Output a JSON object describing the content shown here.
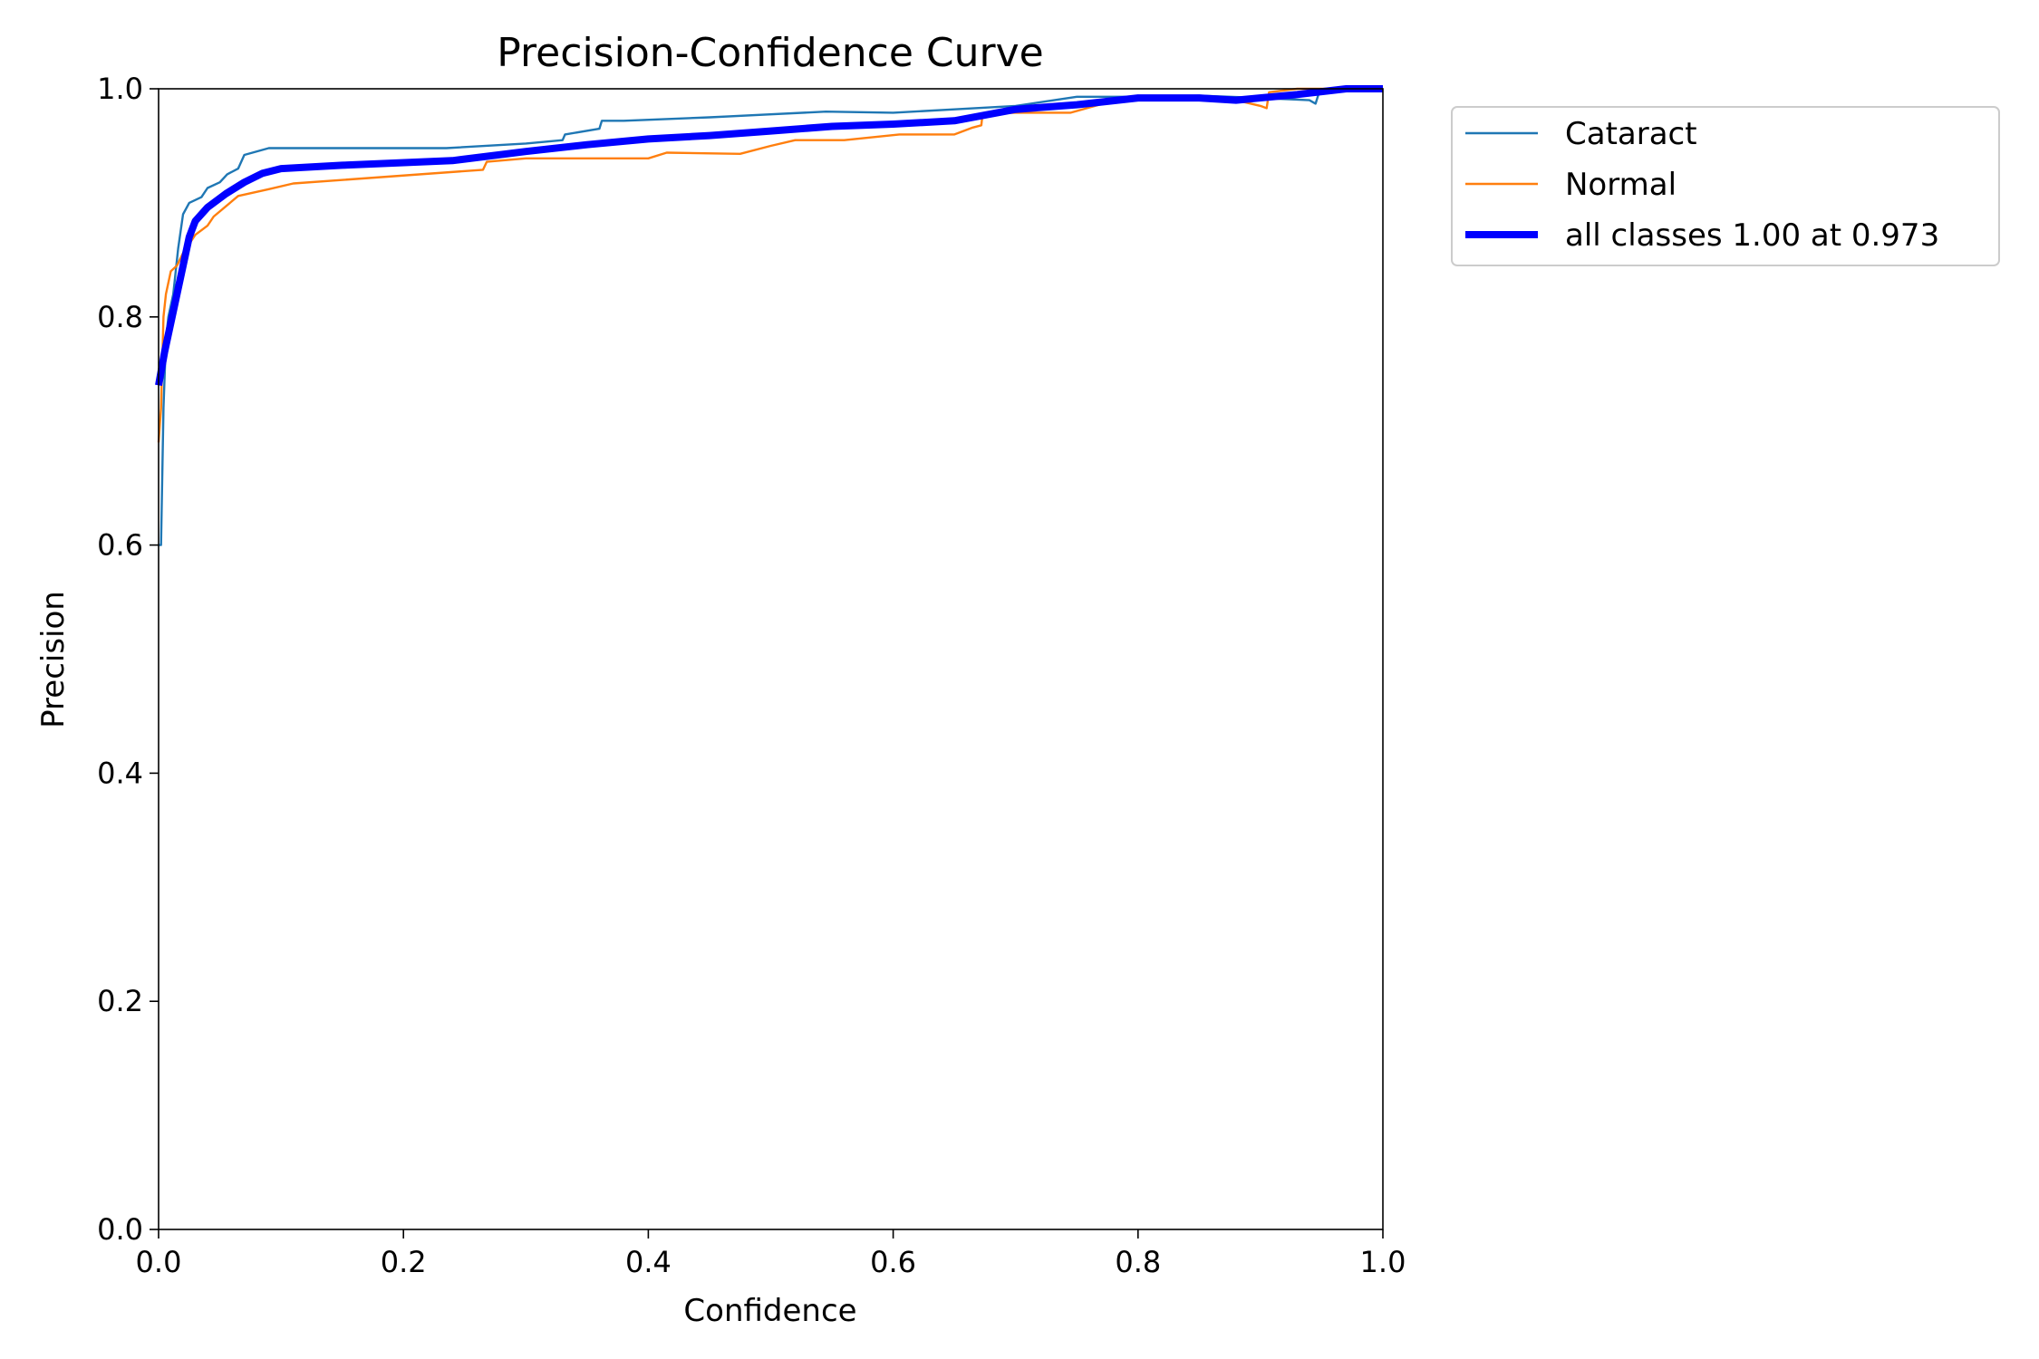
{
  "chart_data": {
    "type": "line",
    "title": "Precision-Confidence Curve",
    "xlabel": "Confidence",
    "ylabel": "Precision",
    "xlim": [
      0,
      1
    ],
    "ylim": [
      0,
      1
    ],
    "x_ticks": [
      "0.0",
      "0.2",
      "0.4",
      "0.6",
      "0.8",
      "1.0"
    ],
    "y_ticks": [
      "0.0",
      "0.2",
      "0.4",
      "0.6",
      "0.8",
      "1.0"
    ],
    "grid": false,
    "legend_position": "outside-top-right",
    "series": [
      {
        "name": "Cataract",
        "color": "#1f77b4",
        "line_width": "thin",
        "points": [
          [
            0.0,
            0.6
          ],
          [
            0.002,
            0.6
          ],
          [
            0.004,
            0.72
          ],
          [
            0.006,
            0.78
          ],
          [
            0.008,
            0.8
          ],
          [
            0.012,
            0.82
          ],
          [
            0.016,
            0.86
          ],
          [
            0.02,
            0.89
          ],
          [
            0.025,
            0.9
          ],
          [
            0.035,
            0.905
          ],
          [
            0.04,
            0.913
          ],
          [
            0.05,
            0.918
          ],
          [
            0.056,
            0.925
          ],
          [
            0.065,
            0.93
          ],
          [
            0.07,
            0.942
          ],
          [
            0.09,
            0.948
          ],
          [
            0.15,
            0.948
          ],
          [
            0.235,
            0.948
          ],
          [
            0.3,
            0.952
          ],
          [
            0.33,
            0.955
          ],
          [
            0.332,
            0.96
          ],
          [
            0.36,
            0.965
          ],
          [
            0.362,
            0.972
          ],
          [
            0.38,
            0.972
          ],
          [
            0.45,
            0.975
          ],
          [
            0.545,
            0.98
          ],
          [
            0.6,
            0.979
          ],
          [
            0.65,
            0.982
          ],
          [
            0.7,
            0.985
          ],
          [
            0.75,
            0.993
          ],
          [
            0.8,
            0.993
          ],
          [
            0.85,
            0.994
          ],
          [
            0.9,
            0.992
          ],
          [
            0.94,
            0.99
          ],
          [
            0.945,
            0.987
          ],
          [
            0.948,
            0.997
          ],
          [
            0.97,
            1.0
          ],
          [
            1.0,
            1.0
          ]
        ]
      },
      {
        "name": "Normal",
        "color": "#ff7f0e",
        "line_width": "thin",
        "points": [
          [
            0.0,
            0.69
          ],
          [
            0.002,
            0.72
          ],
          [
            0.004,
            0.8
          ],
          [
            0.006,
            0.82
          ],
          [
            0.01,
            0.84
          ],
          [
            0.015,
            0.845
          ],
          [
            0.02,
            0.856
          ],
          [
            0.03,
            0.872
          ],
          [
            0.04,
            0.88
          ],
          [
            0.045,
            0.888
          ],
          [
            0.055,
            0.897
          ],
          [
            0.065,
            0.906
          ],
          [
            0.09,
            0.912
          ],
          [
            0.11,
            0.917
          ],
          [
            0.265,
            0.929
          ],
          [
            0.268,
            0.936
          ],
          [
            0.3,
            0.939
          ],
          [
            0.35,
            0.939
          ],
          [
            0.4,
            0.939
          ],
          [
            0.415,
            0.944
          ],
          [
            0.475,
            0.943
          ],
          [
            0.5,
            0.95
          ],
          [
            0.52,
            0.955
          ],
          [
            0.56,
            0.955
          ],
          [
            0.605,
            0.96
          ],
          [
            0.65,
            0.96
          ],
          [
            0.665,
            0.966
          ],
          [
            0.672,
            0.968
          ],
          [
            0.673,
            0.978
          ],
          [
            0.7,
            0.979
          ],
          [
            0.745,
            0.979
          ],
          [
            0.775,
            0.988
          ],
          [
            0.8,
            0.992
          ],
          [
            0.85,
            0.993
          ],
          [
            0.88,
            0.99
          ],
          [
            0.9,
            0.985
          ],
          [
            0.905,
            0.983
          ],
          [
            0.907,
            0.997
          ],
          [
            0.93,
            1.0
          ],
          [
            1.0,
            1.0
          ]
        ]
      },
      {
        "name": "all classes 1.00 at 0.973",
        "color": "#0000ff",
        "line_width": "thick",
        "points": [
          [
            0.0,
            0.74
          ],
          [
            0.005,
            0.77
          ],
          [
            0.015,
            0.82
          ],
          [
            0.025,
            0.87
          ],
          [
            0.03,
            0.884
          ],
          [
            0.04,
            0.896
          ],
          [
            0.055,
            0.908
          ],
          [
            0.07,
            0.918
          ],
          [
            0.085,
            0.926
          ],
          [
            0.1,
            0.93
          ],
          [
            0.15,
            0.933
          ],
          [
            0.24,
            0.937
          ],
          [
            0.3,
            0.945
          ],
          [
            0.35,
            0.951
          ],
          [
            0.4,
            0.956
          ],
          [
            0.45,
            0.959
          ],
          [
            0.5,
            0.963
          ],
          [
            0.55,
            0.967
          ],
          [
            0.6,
            0.969
          ],
          [
            0.65,
            0.972
          ],
          [
            0.7,
            0.982
          ],
          [
            0.75,
            0.986
          ],
          [
            0.8,
            0.992
          ],
          [
            0.85,
            0.992
          ],
          [
            0.88,
            0.99
          ],
          [
            0.93,
            0.995
          ],
          [
            0.97,
            1.0
          ],
          [
            1.0,
            1.0
          ]
        ]
      }
    ]
  }
}
